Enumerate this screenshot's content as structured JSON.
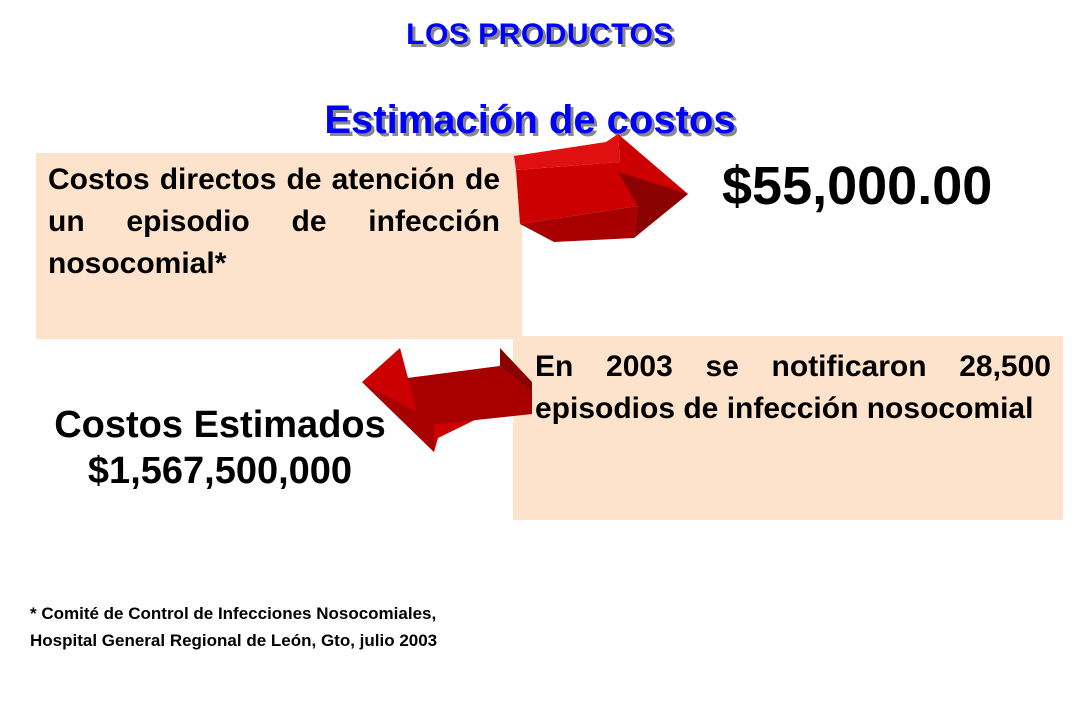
{
  "header": {
    "section": "LOS PRODUCTOS"
  },
  "title": "Estimación de costos",
  "direct_cost_box": {
    "text": "Costos directos de atención de un episodio de infección nosocomial*"
  },
  "unit_cost": "$55,000.00",
  "episodes_box": {
    "text": "En 2003 se notificaron 28,500 episodios de infección nosocomial"
  },
  "estimate": {
    "label": "Costos Estimados",
    "value": "$1,567,500,000"
  },
  "footnote": "* Comité de Control de Infecciones Nosocomiales, Hospital General Regional de León, Gto, julio 2003",
  "colors": {
    "title": "#0000ff",
    "box": "#fde3cc",
    "arrow": "#cc0000",
    "arrow_dark": "#8b0000"
  },
  "icons": [
    "arrow-right-icon",
    "arrow-left-icon"
  ]
}
